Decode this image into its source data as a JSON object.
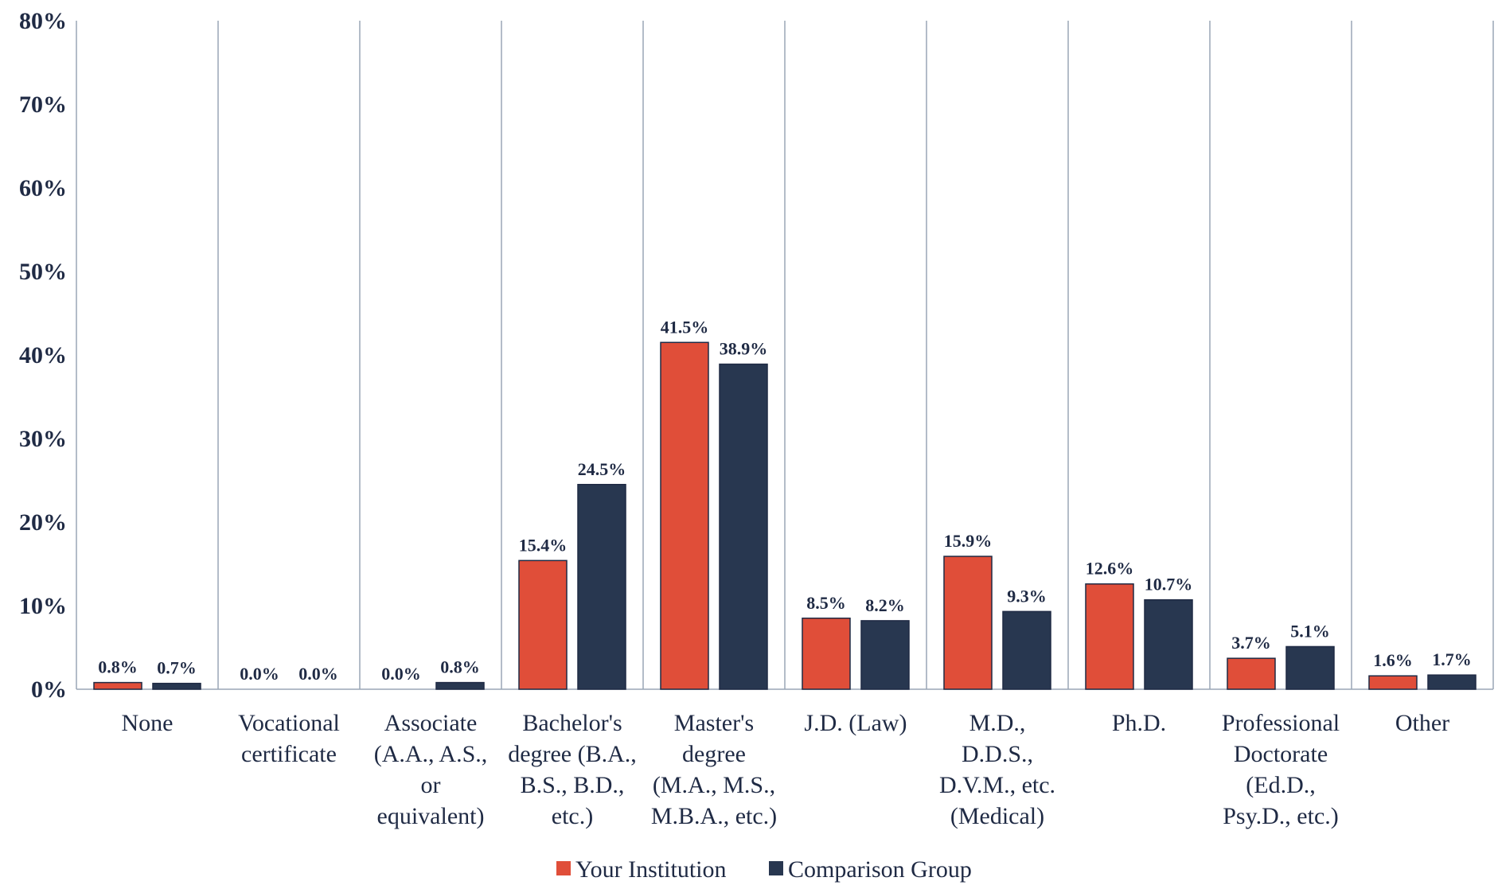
{
  "chart_data": {
    "type": "bar",
    "categories": [
      [
        "None"
      ],
      [
        "Vocational",
        "certificate"
      ],
      [
        "Associate",
        "(A.A., A.S.,",
        "or",
        "equivalent)"
      ],
      [
        "Bachelor's",
        "degree (B.A.,",
        "B.S., B.D.,",
        "etc.)"
      ],
      [
        "Master's",
        "degree",
        "(M.A., M.S.,",
        "M.B.A., etc.)"
      ],
      [
        "J.D. (Law)"
      ],
      [
        "M.D.,",
        "D.D.S.,",
        "D.V.M., etc.",
        "(Medical)"
      ],
      [
        "Ph.D."
      ],
      [
        "Professional",
        "Doctorate",
        "(Ed.D.,",
        "Psy.D., etc.)"
      ],
      [
        "Other"
      ]
    ],
    "series": [
      {
        "name": "Your Institution",
        "color": "#e04e39",
        "values": [
          0.8,
          0.0,
          0.0,
          15.4,
          41.5,
          8.5,
          15.9,
          12.6,
          3.7,
          1.6
        ],
        "labels": [
          "0.8%",
          "0.0%",
          "0.0%",
          "15.4%",
          "41.5%",
          "8.5%",
          "15.9%",
          "12.6%",
          "3.7%",
          "1.6%"
        ]
      },
      {
        "name": "Comparison Group",
        "color": "#283750",
        "values": [
          0.7,
          0.0,
          0.8,
          24.5,
          38.9,
          8.2,
          9.3,
          10.7,
          5.1,
          1.7
        ],
        "labels": [
          "0.7%",
          "0.0%",
          "0.8%",
          "24.5%",
          "38.9%",
          "8.2%",
          "9.3%",
          "10.7%",
          "5.1%",
          "1.7%"
        ]
      }
    ],
    "ylim": [
      0,
      80
    ],
    "yticks": [
      0,
      10,
      20,
      30,
      40,
      50,
      60,
      70,
      80
    ],
    "ytick_labels": [
      "0%",
      "10%",
      "20%",
      "30%",
      "40%",
      "50%",
      "60%",
      "70%",
      "80%"
    ],
    "xlabel": "",
    "ylabel": "",
    "grid": "vertical category separators",
    "legend_position": "bottom-center"
  }
}
